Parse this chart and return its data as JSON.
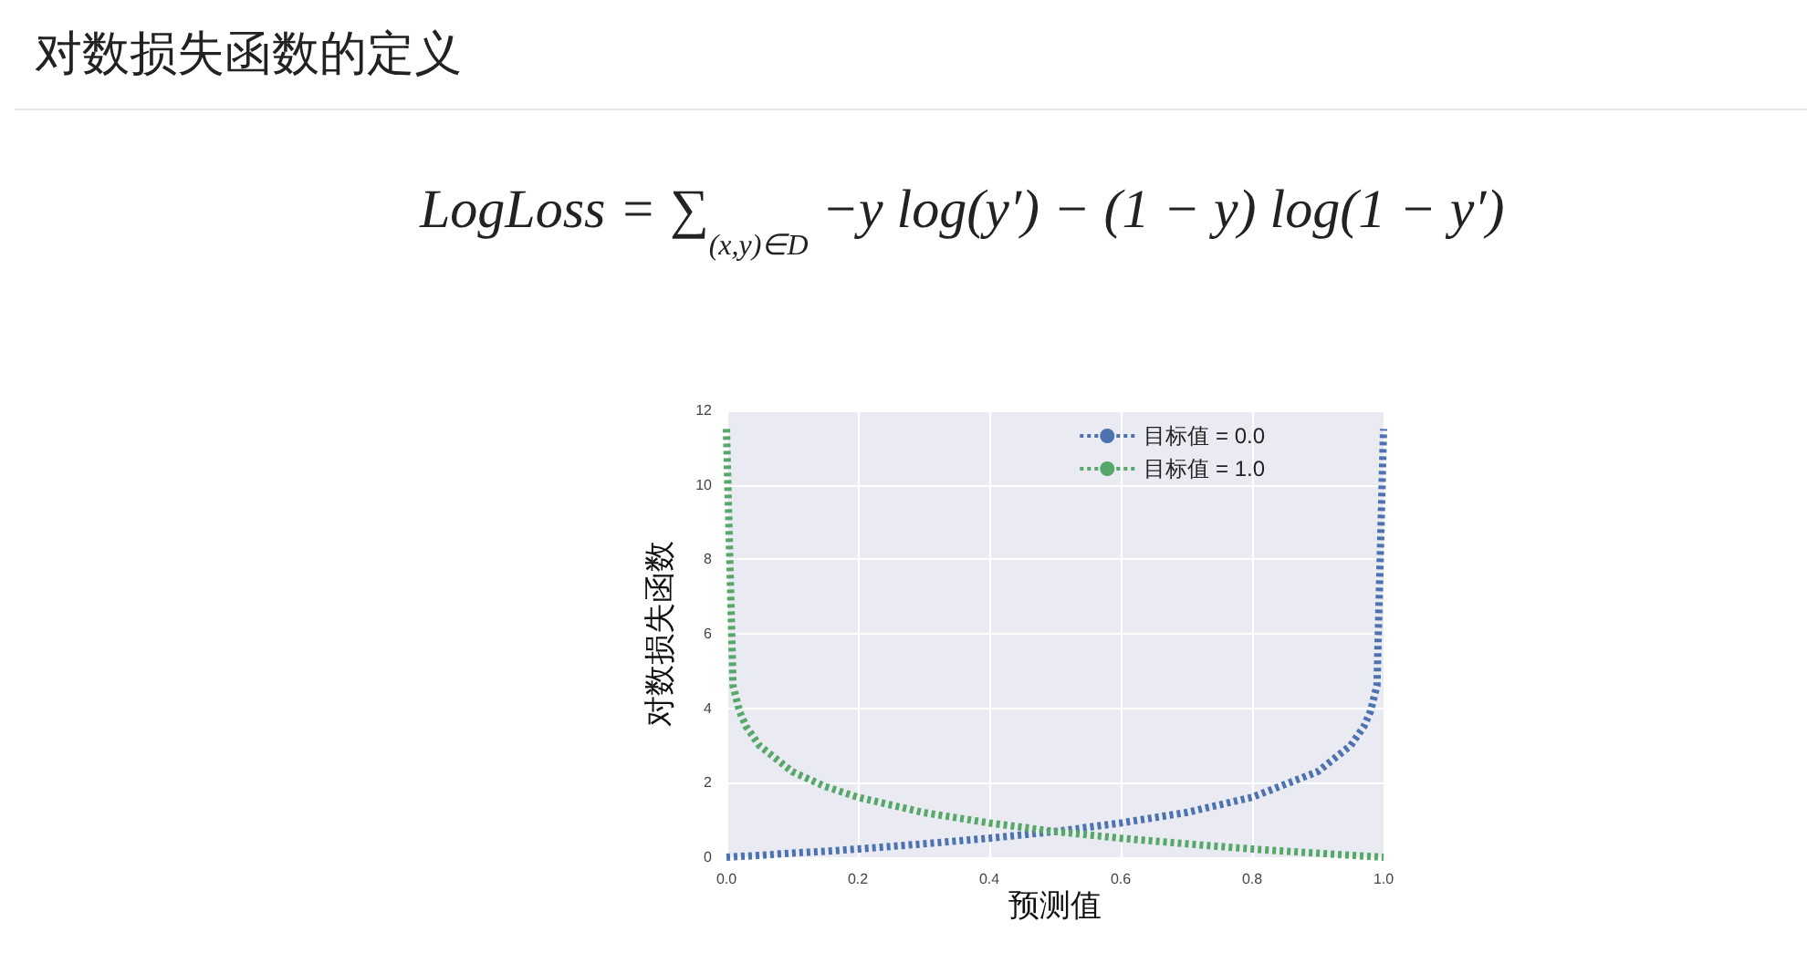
{
  "chart_data": {
    "type": "line",
    "title": "对数损失函数的定义",
    "annotations": [
      "LogLoss = ∑$_{(x,y)∈D}$ −y log(y′) − (1 − y) log(1 − y′)"
    ],
    "xlabel": "预测值",
    "ylabel": "对数损失函数",
    "x": [
      1e-05,
      0.01,
      0.02,
      0.03,
      0.05,
      0.1,
      0.15,
      0.2,
      0.3,
      0.4,
      0.5,
      0.6,
      0.7,
      0.8,
      0.9,
      0.95,
      0.97,
      0.98,
      0.99,
      0.99999
    ],
    "series": [
      {
        "name": "目标值 = 0.0",
        "color": "#4c72b0",
        "values": [
          0,
          0.01,
          0.02,
          0.03,
          0.05,
          0.11,
          0.16,
          0.22,
          0.36,
          0.51,
          0.69,
          0.92,
          1.2,
          1.61,
          2.3,
          3.0,
          3.51,
          3.91,
          4.61,
          11.5
        ]
      },
      {
        "name": "目标值 = 1.0",
        "color": "#55a868",
        "values": [
          11.5,
          4.61,
          3.91,
          3.51,
          3.0,
          2.3,
          1.9,
          1.61,
          1.2,
          0.92,
          0.69,
          0.51,
          0.36,
          0.22,
          0.11,
          0.05,
          0.03,
          0.02,
          0.01,
          0
        ]
      }
    ],
    "xlim": [
      0,
      1
    ],
    "xticks": [
      {
        "value": 0,
        "label": "0.0"
      },
      {
        "value": 0.2,
        "label": "0.2"
      },
      {
        "value": 0.4,
        "label": "0.4"
      },
      {
        "value": 0.6,
        "label": "0.6"
      },
      {
        "value": 0.8,
        "label": "0.8"
      },
      {
        "value": 1,
        "label": "1.0"
      }
    ],
    "ylim": [
      0,
      12
    ],
    "yticks": [
      0,
      2,
      4,
      6,
      8,
      10,
      12
    ],
    "grid": true,
    "legend": "top right",
    "line_style": "dotted",
    "marker": "none"
  }
}
